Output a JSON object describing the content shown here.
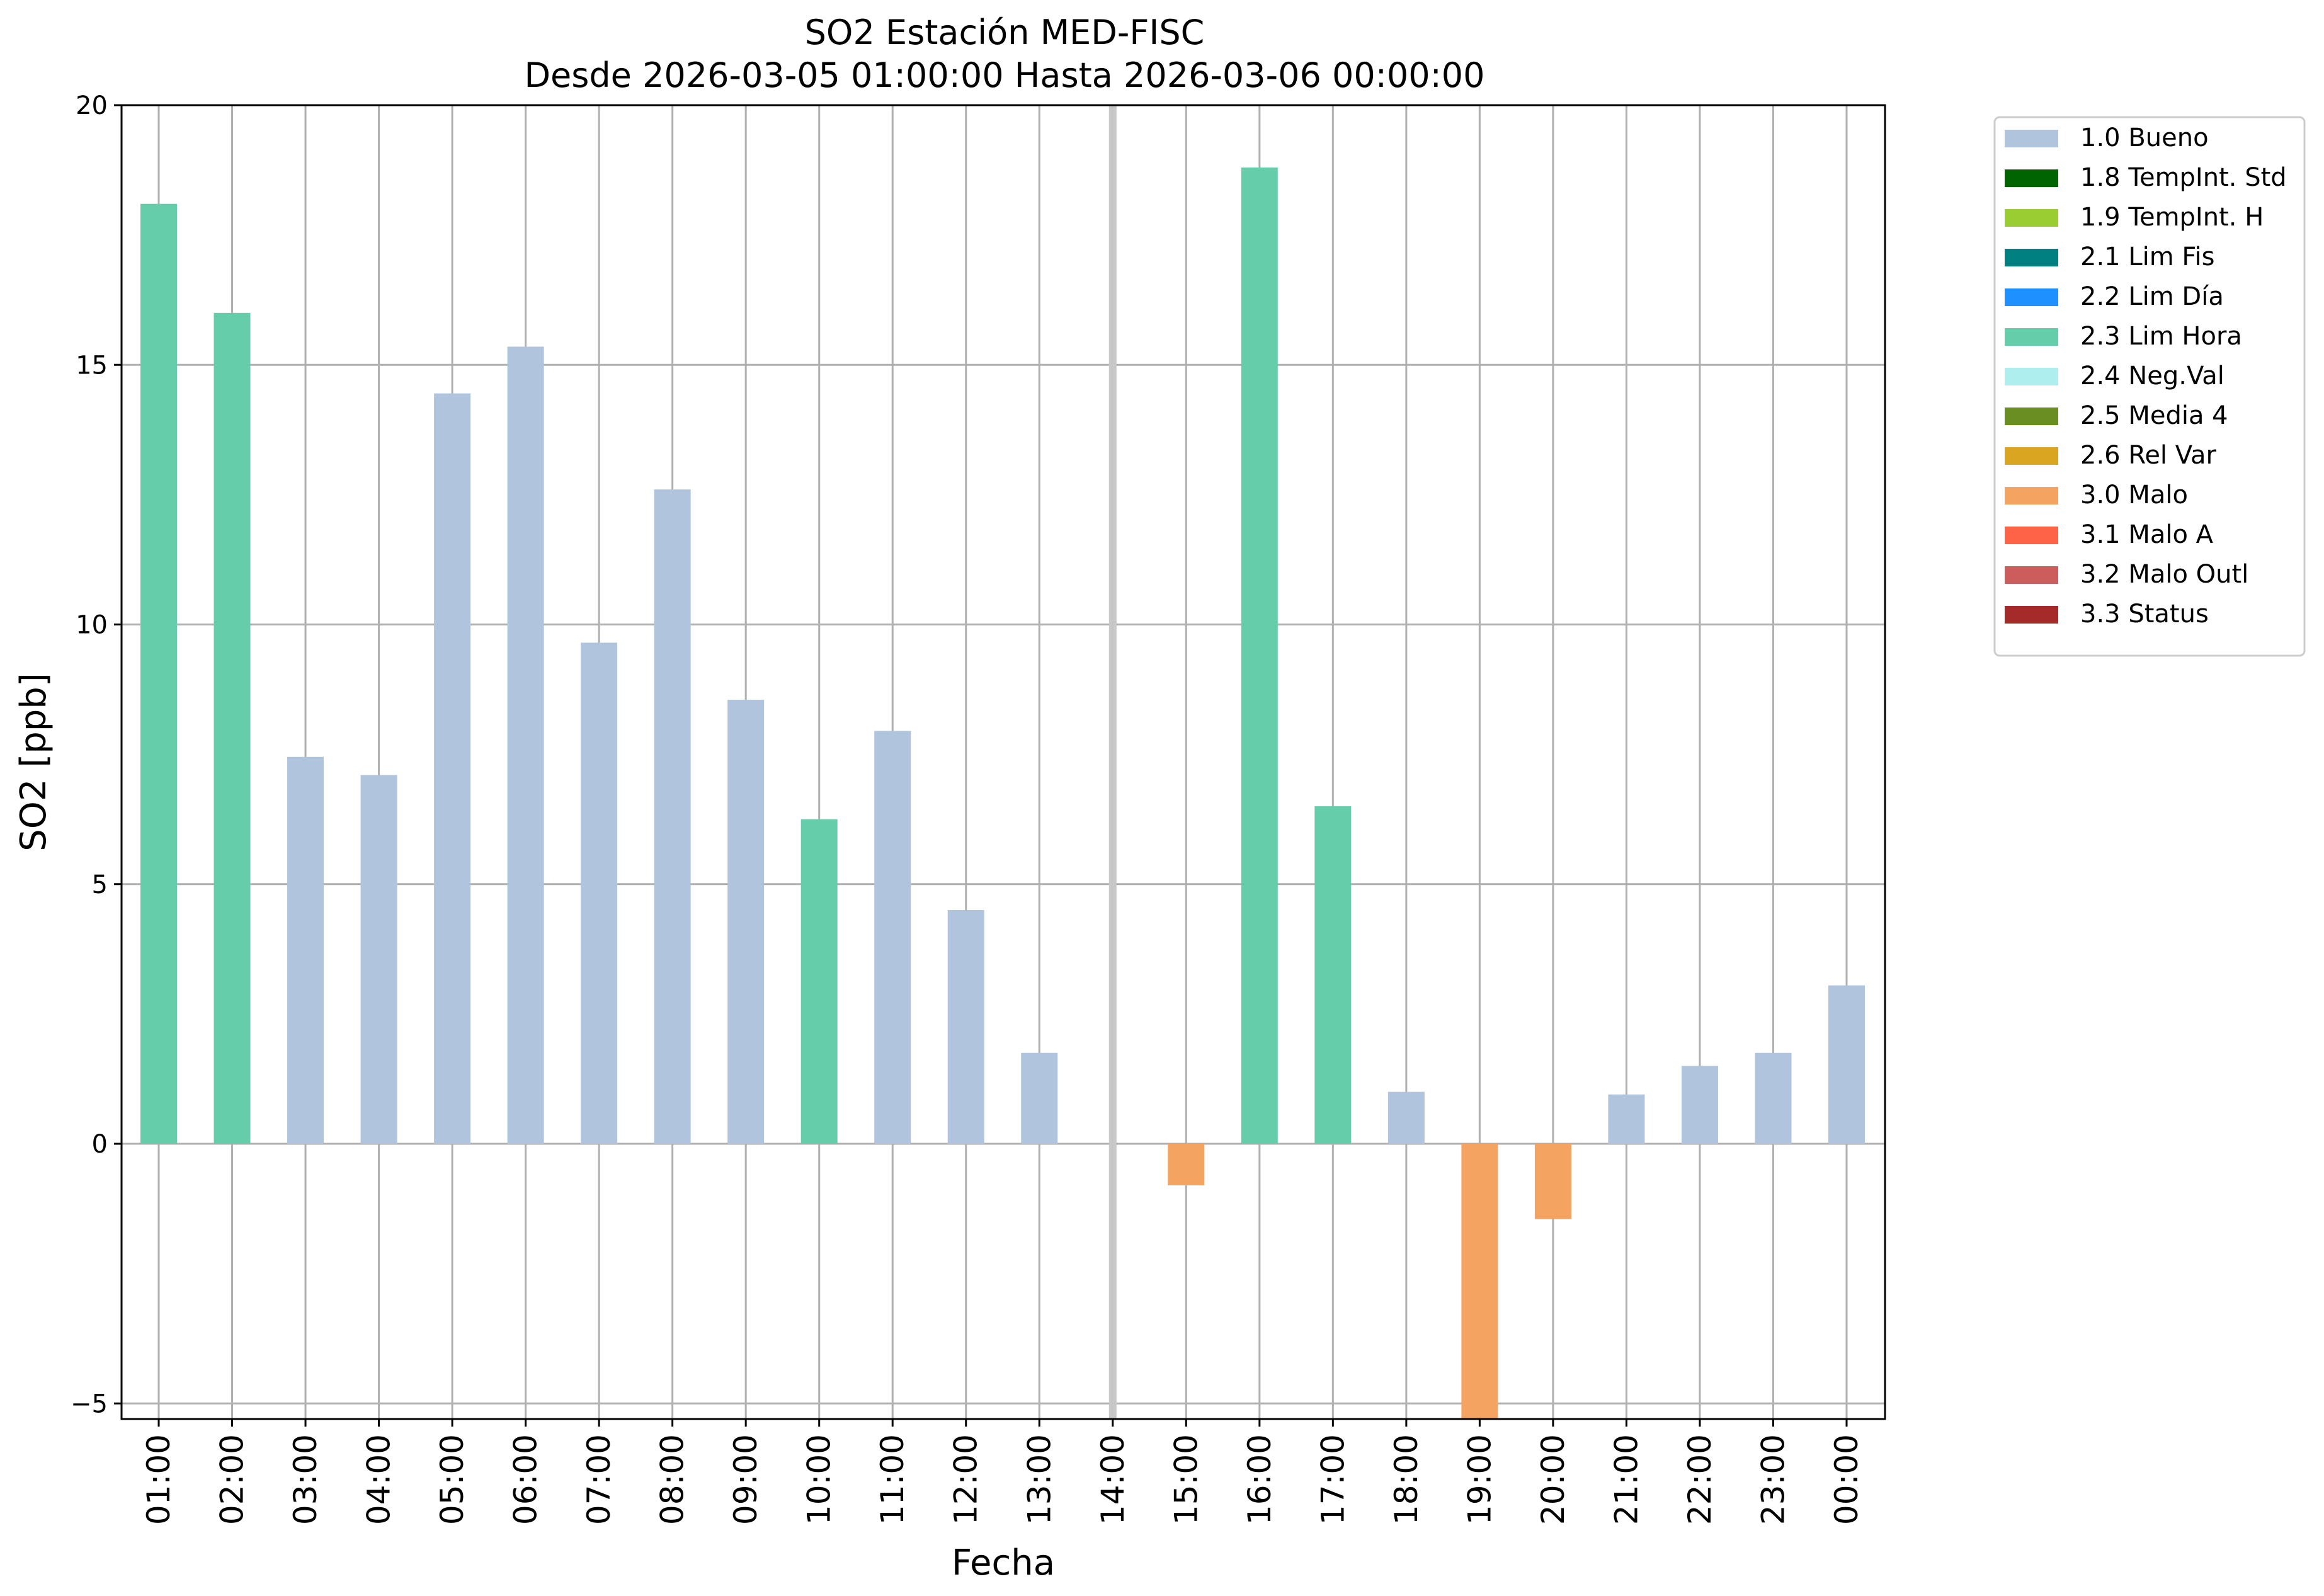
{
  "chart_data": {
    "type": "bar",
    "title": "SO2 Estación MED-FISC",
    "subtitle": "Desde 2026-03-05 01:00:00 Hasta 2026-03-06 00:00:00",
    "xlabel": "Fecha",
    "ylabel": "SO2 [ppb]",
    "ylim": [
      -5.3,
      20
    ],
    "yticks": [
      -5,
      0,
      5,
      10,
      15,
      20
    ],
    "grid": true,
    "legend_position": "outside top-right",
    "categories": [
      "01:00",
      "02:00",
      "03:00",
      "04:00",
      "05:00",
      "06:00",
      "07:00",
      "08:00",
      "09:00",
      "10:00",
      "11:00",
      "12:00",
      "13:00",
      "14:00",
      "15:00",
      "16:00",
      "17:00",
      "18:00",
      "19:00",
      "20:00",
      "21:00",
      "22:00",
      "23:00",
      "00:00"
    ],
    "values": [
      18.1,
      16.0,
      7.45,
      7.1,
      14.45,
      15.35,
      9.65,
      12.6,
      8.55,
      6.25,
      7.95,
      4.5,
      1.75,
      null,
      -0.8,
      18.8,
      6.5,
      1.0,
      -5.3,
      -1.45,
      0.95,
      1.5,
      1.75,
      3.05
    ],
    "flags": [
      "2.3",
      "2.3",
      "1.0",
      "1.0",
      "1.0",
      "1.0",
      "1.0",
      "1.0",
      "1.0",
      "2.3",
      "1.0",
      "1.0",
      "1.0",
      null,
      "3.0",
      "2.3",
      "2.3",
      "1.0",
      "3.0",
      "3.0",
      "1.0",
      "1.0",
      "1.0",
      "1.0"
    ],
    "highlight_category": "14:00",
    "legend": [
      {
        "code": "1.0",
        "label": "1.0 Bueno",
        "color": "#b0c4de"
      },
      {
        "code": "1.8",
        "label": "1.8 TempInt. Std",
        "color": "#006400"
      },
      {
        "code": "1.9",
        "label": "1.9 TempInt. H",
        "color": "#9acd32"
      },
      {
        "code": "2.1",
        "label": "2.1 Lim Fis",
        "color": "#008080"
      },
      {
        "code": "2.2",
        "label": "2.2 Lim Día",
        "color": "#1e90ff"
      },
      {
        "code": "2.3",
        "label": "2.3 Lim Hora",
        "color": "#66cdaa"
      },
      {
        "code": "2.4",
        "label": "2.4 Neg.Val",
        "color": "#afeeee"
      },
      {
        "code": "2.5",
        "label": "2.5 Media 4",
        "color": "#6b8e23"
      },
      {
        "code": "2.6",
        "label": "2.6 Rel Var",
        "color": "#daa520"
      },
      {
        "code": "3.0",
        "label": "3.0 Malo",
        "color": "#f4a460"
      },
      {
        "code": "3.1",
        "label": "3.1 Malo A",
        "color": "#ff6347"
      },
      {
        "code": "3.2",
        "label": "3.2 Malo Outl",
        "color": "#cd5c5c"
      },
      {
        "code": "3.3",
        "label": "3.3 Status",
        "color": "#a52a2a"
      }
    ]
  }
}
